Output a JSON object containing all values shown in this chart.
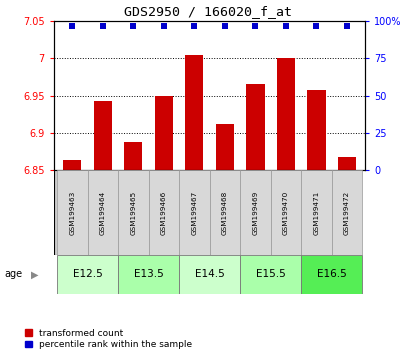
{
  "title": "GDS2950 / 166020_f_at",
  "samples": [
    "GSM199463",
    "GSM199464",
    "GSM199465",
    "GSM199466",
    "GSM199467",
    "GSM199468",
    "GSM199469",
    "GSM199470",
    "GSM199471",
    "GSM199472"
  ],
  "red_values": [
    6.863,
    6.943,
    6.888,
    6.95,
    7.005,
    6.912,
    6.965,
    7.0,
    6.958,
    6.868
  ],
  "blue_values": [
    97,
    97,
    97,
    97,
    97,
    97,
    97,
    97,
    97,
    97
  ],
  "ylim_left": [
    6.85,
    7.05
  ],
  "ylim_right": [
    0,
    100
  ],
  "yticks_left": [
    6.85,
    6.9,
    6.95,
    7.0,
    7.05
  ],
  "yticks_right": [
    0,
    25,
    50,
    75,
    100
  ],
  "ytick_labels_left": [
    "6.85",
    "6.9",
    "6.95",
    "7",
    "7.05"
  ],
  "ytick_labels_right": [
    "0",
    "25",
    "50",
    "75",
    "100%"
  ],
  "groups": [
    {
      "label": "E12.5",
      "samples": [
        0,
        1
      ],
      "color": "#ccffcc"
    },
    {
      "label": "E13.5",
      "samples": [
        2,
        3
      ],
      "color": "#aaffaa"
    },
    {
      "label": "E14.5",
      "samples": [
        4,
        5
      ],
      "color": "#ccffcc"
    },
    {
      "label": "E15.5",
      "samples": [
        6,
        7
      ],
      "color": "#aaffaa"
    },
    {
      "label": "E16.5",
      "samples": [
        8,
        9
      ],
      "color": "#55ee55"
    }
  ],
  "age_label": "age",
  "legend_red": "transformed count",
  "legend_blue": "percentile rank within the sample",
  "bar_color": "#cc0000",
  "dot_color": "#0000cc",
  "sample_area_color": "#cccccc",
  "sample_box_color": "#d8d8d8"
}
